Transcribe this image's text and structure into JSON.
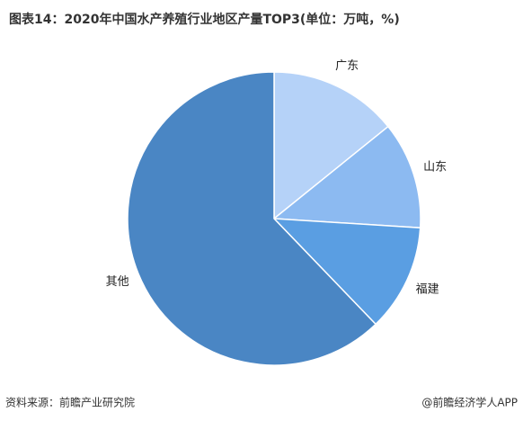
{
  "chart_data": {
    "type": "pie",
    "title": "图表14：2020年中国水产养殖行业地区产量TOP3(单位：万吨，%)",
    "categories": [
      "广东",
      "山东",
      "福建",
      "其他"
    ],
    "values": [
      14.2,
      11.8,
      11.8,
      62.2
    ],
    "colors": [
      "#b5d2f8",
      "#8cbaf1",
      "#5a9ee2",
      "#4a86c4"
    ],
    "start_angle": 0,
    "direction": "clockwise",
    "source": "资料来源：前瞻产业研究院",
    "credit": "@前瞻经济学人APP"
  }
}
